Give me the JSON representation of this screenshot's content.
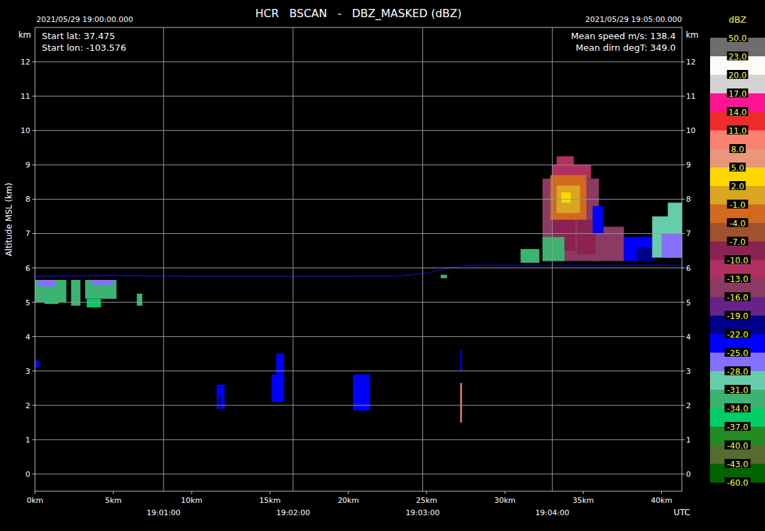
{
  "chart_data": {
    "type": "bscan",
    "title": "HCR   BSCAN   -   DBZ_MASKED (dBZ)",
    "start_time": "2021/05/29 19:00:00.000",
    "end_time": "2021/05/29 19:05:00.000",
    "info_left": [
      "Start lat: 37.475",
      "Start lon: -103.576"
    ],
    "info_right": [
      "Mean speed m/s: 138.4",
      "Mean dirn degT: 349.0"
    ],
    "y_label": "Altitude MSL (km)",
    "y_unit": "km",
    "x2_label": "UTC",
    "grid": true,
    "xlim": [
      0,
      41.3
    ],
    "xticks": [
      {
        "value": 0,
        "label": "0km"
      },
      {
        "value": 5,
        "label": "5km"
      },
      {
        "value": 10,
        "label": "10km"
      },
      {
        "value": 15,
        "label": "15km"
      },
      {
        "value": 20,
        "label": "20km"
      },
      {
        "value": 25,
        "label": "25km"
      },
      {
        "value": 30,
        "label": "30km"
      },
      {
        "value": 35,
        "label": "35km"
      },
      {
        "value": 40,
        "label": "40km"
      }
    ],
    "x2lim": [
      0.5,
      300
    ],
    "x2ticks": [
      {
        "value": 60,
        "label": "19:01:00"
      },
      {
        "value": 120,
        "label": "19:02:00"
      },
      {
        "value": 180,
        "label": "19:03:00"
      },
      {
        "value": 240,
        "label": "19:04:00"
      }
    ],
    "ylim": [
      -0.5,
      13
    ],
    "yticks": [
      0,
      1,
      2,
      3,
      4,
      5,
      6,
      7,
      8,
      9,
      10,
      11,
      12
    ],
    "colorbar": {
      "title": "dBZ",
      "ticks": [
        {
          "value": 50,
          "label": "50.0"
        },
        {
          "value": 23,
          "label": "23.0"
        },
        {
          "value": 20,
          "label": "20.0"
        },
        {
          "value": 17,
          "label": "17.0"
        },
        {
          "value": 14,
          "label": "14.0"
        },
        {
          "value": 11,
          "label": "11.0"
        },
        {
          "value": 8,
          "label": "8.0"
        },
        {
          "value": 5,
          "label": "5.0"
        },
        {
          "value": 2,
          "label": "2.0"
        },
        {
          "value": -1,
          "label": "-1.0"
        },
        {
          "value": -4,
          "label": "-4.0"
        },
        {
          "value": -7,
          "label": "-7.0"
        },
        {
          "value": -10,
          "label": "-10.0"
        },
        {
          "value": -13,
          "label": "-13.0"
        },
        {
          "value": -16,
          "label": "-16.0"
        },
        {
          "value": -19,
          "label": "-19.0"
        },
        {
          "value": -22,
          "label": "-22.0"
        },
        {
          "value": -25,
          "label": "-25.0"
        },
        {
          "value": -28,
          "label": "-28.0"
        },
        {
          "value": -31,
          "label": "-31.0"
        },
        {
          "value": -34,
          "label": "-34.0"
        },
        {
          "value": -37,
          "label": "-37.0"
        },
        {
          "value": -40,
          "label": "-40.0"
        },
        {
          "value": -43,
          "label": "-43.0"
        },
        {
          "value": -60,
          "label": "-60.0"
        }
      ],
      "colors": [
        "#6d6d6d",
        "#fdfbf8",
        "#d3d3d3",
        "#ff1493",
        "#ee2c2c",
        "#fa8072",
        "#e9967a",
        "#ffd700",
        "#daa520",
        "#d2691e",
        "#a0522d",
        "#8b2252",
        "#b03060",
        "#8b3a62",
        "#68228b",
        "#00008b",
        "#0000ff",
        "#8470ff",
        "#66cdaa",
        "#3cb371",
        "#00cd66",
        "#228b22",
        "#556b2f",
        "#006400"
      ]
    },
    "cells": [
      {
        "x": [
          0,
          2.0
        ],
        "y": [
          5.0,
          5.65
        ],
        "dbz": -32
      },
      {
        "x": [
          2.3,
          2.9
        ],
        "y": [
          4.9,
          5.65
        ],
        "dbz": -33
      },
      {
        "x": [
          3.2,
          5.2
        ],
        "y": [
          5.1,
          5.65
        ],
        "dbz": -32
      },
      {
        "x": [
          3.3,
          4.2
        ],
        "y": [
          4.85,
          5.1
        ],
        "dbz": -34
      },
      {
        "x": [
          0.6,
          1.5
        ],
        "y": [
          4.95,
          5.0
        ],
        "dbz": -35
      },
      {
        "x": [
          0.2,
          1.3
        ],
        "y": [
          5.45,
          5.65
        ],
        "dbz": -27
      },
      {
        "x": [
          3.6,
          5.0
        ],
        "y": [
          5.5,
          5.65
        ],
        "dbz": -26
      },
      {
        "x": [
          6.5,
          6.85
        ],
        "y": [
          4.9,
          5.25
        ],
        "dbz": -33
      },
      {
        "x": [
          0,
          0.26
        ],
        "y": [
          3.1,
          3.3
        ],
        "dbz": -23
      },
      {
        "x": [
          11.6,
          12.1
        ],
        "y": [
          1.9,
          2.6
        ],
        "dbz": -23
      },
      {
        "x": [
          11.7,
          11.9
        ],
        "y": [
          1.95,
          2.3
        ],
        "dbz": -20
      },
      {
        "x": [
          15.1,
          15.9
        ],
        "y": [
          2.1,
          2.9
        ],
        "dbz": -23
      },
      {
        "x": [
          15.4,
          15.9
        ],
        "y": [
          2.9,
          3.5
        ],
        "dbz": -23
      },
      {
        "x": [
          20.3,
          21.4
        ],
        "y": [
          1.85,
          2.9
        ],
        "dbz": -23
      },
      {
        "x": [
          27.15,
          27.25
        ],
        "y": [
          3.0,
          3.6
        ],
        "dbz": -23
      },
      {
        "x": [
          27.15,
          27.25
        ],
        "y": [
          1.5,
          2.65
        ],
        "dbz": 8
      },
      {
        "x": [
          25.9,
          26.3
        ],
        "y": [
          5.7,
          5.8
        ],
        "dbz": -32
      },
      {
        "x": [
          31.0,
          32.2
        ],
        "y": [
          6.15,
          6.55
        ],
        "dbz": -31
      },
      {
        "x": [
          32.4,
          36.0
        ],
        "y": [
          6.2,
          8.6
        ],
        "dbz": -15
      },
      {
        "x": [
          33.0,
          35.5
        ],
        "y": [
          8.6,
          9.0
        ],
        "dbz": -11
      },
      {
        "x": [
          33.3,
          34.4
        ],
        "y": [
          9.0,
          9.25
        ],
        "dbz": -12
      },
      {
        "x": [
          32.9,
          35.2
        ],
        "y": [
          7.4,
          8.7
        ],
        "dbz": -3
      },
      {
        "x": [
          33.3,
          34.8
        ],
        "y": [
          7.6,
          8.4
        ],
        "dbz": 1
      },
      {
        "x": [
          33.6,
          34.2
        ],
        "y": [
          7.9,
          8.2
        ],
        "dbz": 3
      },
      {
        "x": [
          34.6,
          35.8
        ],
        "y": [
          6.4,
          7.4
        ],
        "dbz": -8
      },
      {
        "x": [
          33.0,
          34.5
        ],
        "y": [
          6.5,
          7.4
        ],
        "dbz": -9
      },
      {
        "x": [
          32.4,
          33.8
        ],
        "y": [
          6.2,
          6.9
        ],
        "dbz": -33
      },
      {
        "x": [
          35.8,
          37.6
        ],
        "y": [
          6.2,
          7.2
        ],
        "dbz": -14
      },
      {
        "x": [
          35.6,
          36.3
        ],
        "y": [
          7.0,
          7.8
        ],
        "dbz": -23
      },
      {
        "x": [
          37.6,
          39.4
        ],
        "y": [
          6.2,
          6.9
        ],
        "dbz": -23
      },
      {
        "x": [
          38.4,
          39.6
        ],
        "y": [
          6.2,
          6.6
        ],
        "dbz": -19
      },
      {
        "x": [
          39.4,
          41.3
        ],
        "y": [
          6.3,
          7.5
        ],
        "dbz": -30
      },
      {
        "x": [
          40.4,
          41.3
        ],
        "y": [
          7.0,
          7.9
        ],
        "dbz": -30
      },
      {
        "x": [
          40.0,
          41.3
        ],
        "y": [
          6.3,
          7.0
        ],
        "dbz": -27
      }
    ],
    "aircraft_altitude": {
      "color": "#1010e0",
      "x": [
        0,
        5,
        10,
        15,
        20,
        23.5,
        25,
        26.5,
        27.5,
        30,
        35,
        41.3
      ],
      "values": [
        5.76,
        5.78,
        5.76,
        5.76,
        5.76,
        5.77,
        5.85,
        6.0,
        6.07,
        6.08,
        6.08,
        6.08
      ]
    }
  }
}
